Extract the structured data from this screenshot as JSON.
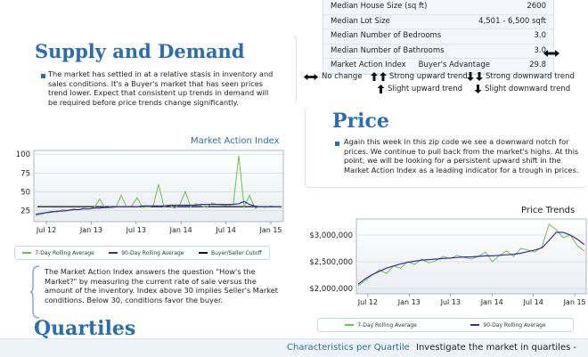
{
  "stats": {
    "rows": [
      {
        "label": "Median House Size (sq ft)",
        "value": "2600"
      },
      {
        "label": "Median Lot Size",
        "value": "4,501 - 6,500 sqft"
      },
      {
        "label": "Median Number of Bedrooms",
        "value": "3.0"
      },
      {
        "label": "Median Number of Bathrooms",
        "value": "3.0"
      }
    ],
    "mai_label": "Market Action Index",
    "mai_status": "Buyer's Advantage",
    "mai_value": "29.8"
  },
  "trend_legend": {
    "no_change": "No change",
    "strong_up": "Strong upward trend",
    "strong_down": "Strong downward trend",
    "slight_up": "Slight upward trend",
    "slight_down": "Slight downward trend"
  },
  "supply": {
    "title": "Supply and Demand",
    "text": "The market has settled in at a relative stasis in inventory and sales conditions. It's a Buyer's market that has seen prices trend lower. Expect that consistent up trends in demand will be required before price trends change significantly."
  },
  "mai_chart": {
    "title": "Market Action Index",
    "legend": [
      "7-Day Rolling Average",
      "90-Day Rolling Average",
      "Buyer/Seller Cutoff"
    ]
  },
  "mai_explain": {
    "text": "The Market Action Index answers the question \"How's the Market?\" by measuring the current rate of sale versus the amount of the inventory.  Index above 30 implies Seller's Market conditions. Below 30, conditions favor the buyer."
  },
  "price": {
    "title": "Price",
    "text": "Again this week in this zip code we see a downward notch for prices. We continue to pull back from the market's highs. At this point, we will be looking for a persistent upward shift in the Market Action Index as a leading indicator for a trough in prices."
  },
  "price_chart": {
    "title": "Price Trends",
    "legend": [
      "7-Day Rolling Average",
      "90-Day Rolling Average"
    ]
  },
  "quartiles": {
    "title": "Quartiles",
    "characteristics": "Characteristics per Quartile",
    "investigate": "Investigate the market in quartiles -"
  },
  "colors": {
    "heading": "#2a6db0",
    "series7": "#6cc24a",
    "series90": "#3a2aa8",
    "cutoff": "#111111"
  },
  "chart_data": [
    {
      "type": "line",
      "title": "Market Action Index",
      "x_ticks": [
        "Jul 12",
        "Jan 13",
        "Jul 13",
        "Jan 14",
        "Jul 14",
        "Jan 15"
      ],
      "y_ticks": [
        25,
        50,
        75,
        100
      ],
      "ylim": [
        10,
        105
      ],
      "series": [
        {
          "name": "7-Day Rolling Average",
          "values": [
            18,
            20,
            22,
            24,
            23,
            26,
            25,
            27,
            26,
            28,
            27,
            29,
            40,
            28,
            30,
            29,
            45,
            30,
            31,
            42,
            29,
            30,
            31,
            60,
            30,
            32,
            28,
            33,
            50,
            30,
            34,
            31,
            29,
            35,
            33,
            32,
            31,
            34,
            98,
            30,
            45,
            28,
            30,
            29,
            31,
            30,
            29
          ]
        },
        {
          "name": "90-Day Rolling Average",
          "values": [
            20,
            21,
            22,
            23,
            24,
            24,
            25,
            26,
            26,
            27,
            27,
            28,
            28,
            29,
            29,
            30,
            30,
            30,
            30,
            30,
            31,
            31,
            31,
            31,
            31,
            32,
            32,
            32,
            32,
            32,
            32,
            33,
            33,
            33,
            33,
            33,
            33,
            33,
            34,
            37,
            33,
            31,
            30,
            30,
            30,
            30,
            30
          ]
        },
        {
          "name": "Buyer/Seller Cutoff",
          "values": [
            30
          ]
        }
      ]
    },
    {
      "type": "line",
      "title": "Price Trends",
      "x_ticks": [
        "Jul 12",
        "Jan 13",
        "Jul 13",
        "Jan 14",
        "Jul 14",
        "Jan 15"
      ],
      "y_ticks": [
        "$2,000,000",
        "$2,500,000",
        "$3,000,000"
      ],
      "ylim": [
        1900000,
        3300000
      ],
      "series": [
        {
          "name": "7-Day Rolling Average",
          "values": [
            2050000,
            2150000,
            2250000,
            2350000,
            2280000,
            2420000,
            2380000,
            2500000,
            2450000,
            2550000,
            2480000,
            2520000,
            2600000,
            2560000,
            2620000,
            2580000,
            2550000,
            2600000,
            2680000,
            2500000,
            2620000,
            2700000,
            2600000,
            2750000,
            2720000,
            2680000,
            2780000,
            3200000,
            3100000,
            2950000,
            3000000,
            2800000,
            2700000
          ]
        },
        {
          "name": "90-Day Rolling Average",
          "values": [
            2080000,
            2180000,
            2260000,
            2320000,
            2380000,
            2420000,
            2460000,
            2490000,
            2510000,
            2530000,
            2540000,
            2550000,
            2560000,
            2570000,
            2580000,
            2590000,
            2590000,
            2600000,
            2610000,
            2610000,
            2620000,
            2630000,
            2640000,
            2660000,
            2690000,
            2720000,
            2760000,
            2900000,
            3050000,
            3050000,
            3000000,
            2920000,
            2820000
          ]
        }
      ]
    }
  ]
}
